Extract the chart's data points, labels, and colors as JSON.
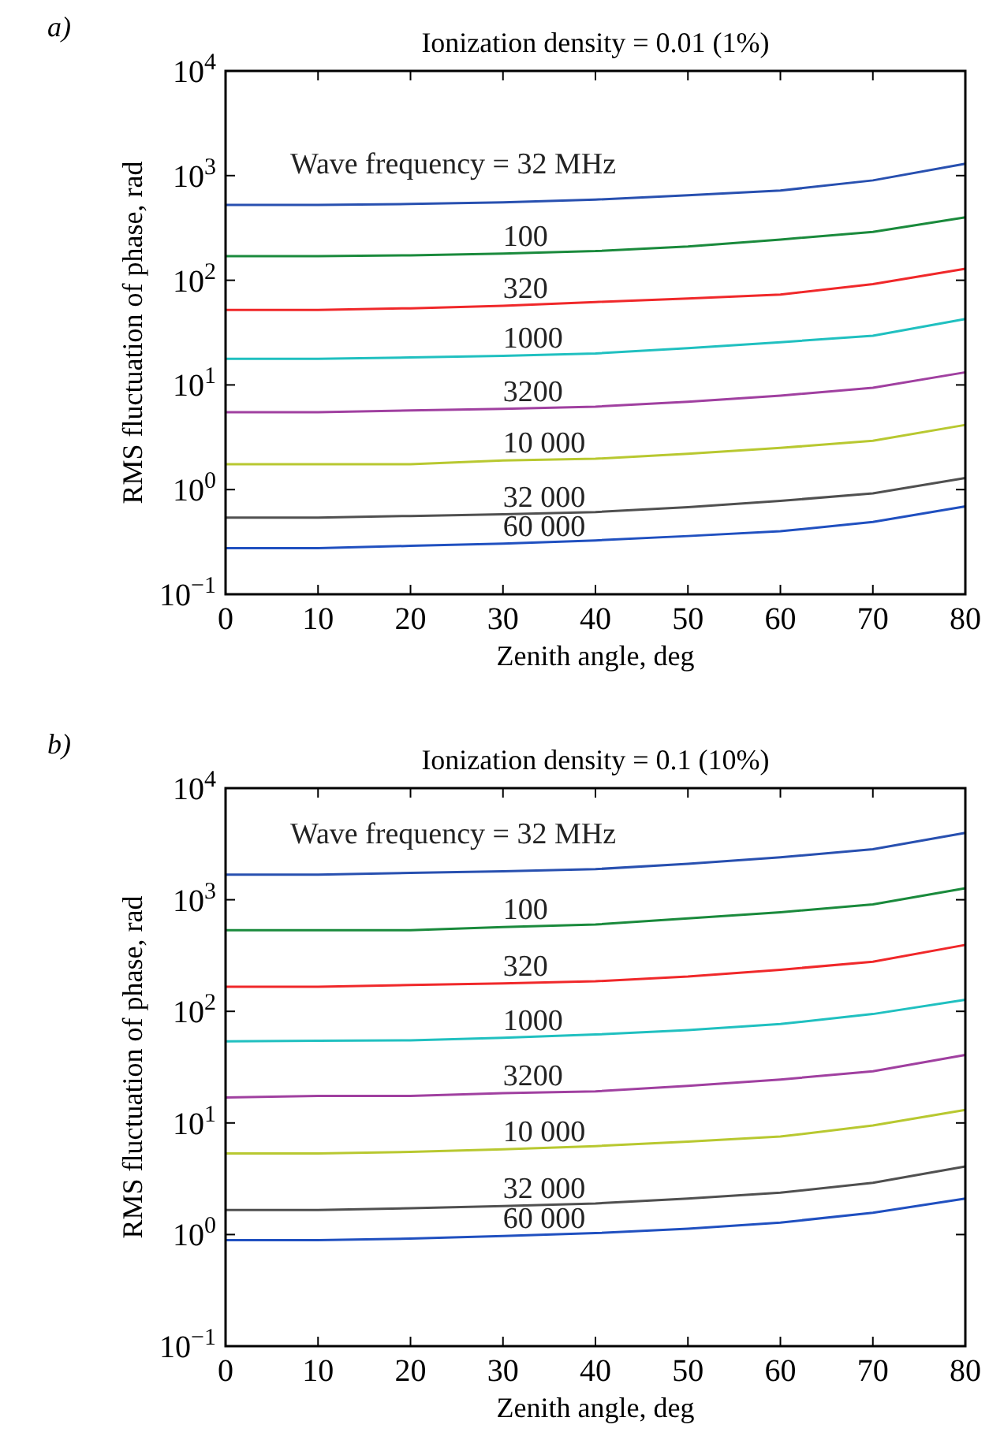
{
  "chart_data": [
    {
      "type": "line",
      "title": "Ionization density = 0.01 (1%)",
      "xlabel": "Zenith angle, deg",
      "ylabel": "RMS fluctuation of phase, rad",
      "annotations": [
        "a)"
      ],
      "log": true,
      "grid": false,
      "xlim": [
        0,
        80
      ],
      "xticks": [
        0,
        10,
        20,
        30,
        40,
        50,
        60,
        70,
        80
      ],
      "ylim": [
        0.1,
        10000
      ],
      "yticks": [
        {
          "value": 0.1,
          "label": "10$^{−1}$"
        },
        {
          "value": 1,
          "label": "10$^{0}$"
        },
        {
          "value": 10,
          "label": "10$^{1}$"
        },
        {
          "value": 100,
          "label": "10$^{2}$"
        },
        {
          "value": 1000,
          "label": "10$^{3}$"
        },
        {
          "value": 10000,
          "label": "10$^{4}$"
        }
      ],
      "x": [
        0,
        10,
        20,
        30,
        40,
        50,
        60,
        70,
        80
      ],
      "series": [
        {
          "name": "Wave frequency = 32 MHz",
          "color": "#2850b0",
          "values": [
            525,
            525,
            535,
            555,
            590,
            650,
            720,
            900,
            1300
          ]
        },
        {
          "name": "100",
          "color": "#1a8a3c",
          "values": [
            170,
            170,
            173,
            180,
            190,
            210,
            245,
            290,
            400
          ]
        },
        {
          "name": "320",
          "color": "#f0282a",
          "values": [
            52,
            52,
            54,
            57,
            62,
            67,
            73,
            92,
            129
          ]
        },
        {
          "name": "1000",
          "color": "#20c0c0",
          "values": [
            17.8,
            17.8,
            18.3,
            19,
            20,
            22.5,
            25.6,
            29.5,
            42.6
          ]
        },
        {
          "name": "3200",
          "color": "#a040a0",
          "values": [
            5.5,
            5.5,
            5.7,
            5.9,
            6.2,
            6.9,
            7.9,
            9.4,
            13.2
          ]
        },
        {
          "name": "10 000",
          "color": "#b8c830",
          "values": [
            1.75,
            1.75,
            1.75,
            1.9,
            1.97,
            2.2,
            2.5,
            2.93,
            4.15
          ]
        },
        {
          "name": "32 000",
          "color": "#505050",
          "values": [
            0.54,
            0.54,
            0.56,
            0.58,
            0.61,
            0.68,
            0.78,
            0.92,
            1.29
          ]
        },
        {
          "name": "60 000",
          "color": "#2050c0",
          "values": [
            0.276,
            0.276,
            0.29,
            0.305,
            0.327,
            0.36,
            0.4,
            0.49,
            0.69
          ]
        }
      ]
    },
    {
      "type": "line",
      "title": "Ionization density = 0.1 (10%)",
      "xlabel": "Zenith angle, deg",
      "ylabel": "RMS fluctuation of phase, rad",
      "annotations": [
        "b)"
      ],
      "log": true,
      "grid": false,
      "xlim": [
        0,
        80
      ],
      "xticks": [
        0,
        10,
        20,
        30,
        40,
        50,
        60,
        70,
        80
      ],
      "ylim": [
        0.1,
        10000
      ],
      "yticks": [
        {
          "value": 0.1,
          "label": "10$^{−1}$"
        },
        {
          "value": 1,
          "label": "10$^{0}$"
        },
        {
          "value": 10,
          "label": "10$^{1}$"
        },
        {
          "value": 100,
          "label": "10$^{2}$"
        },
        {
          "value": 1000,
          "label": "10$^{3}$"
        },
        {
          "value": 10000,
          "label": "10$^{4}$"
        }
      ],
      "x": [
        0,
        10,
        20,
        30,
        40,
        50,
        60,
        70,
        80
      ],
      "series": [
        {
          "name": "Wave frequency = 32 MHz",
          "color": "#2850b0",
          "values": [
            1680,
            1680,
            1740,
            1800,
            1880,
            2100,
            2400,
            2840,
            3980
          ]
        },
        {
          "name": "100",
          "color": "#1a8a3c",
          "values": [
            533,
            533,
            533,
            570,
            600,
            680,
            772,
            908,
            1270
          ]
        },
        {
          "name": "320",
          "color": "#f0282a",
          "values": [
            166,
            166,
            172,
            178,
            186,
            205,
            236,
            278,
            394
          ]
        },
        {
          "name": "1000",
          "color": "#20c0c0",
          "values": [
            53.8,
            54.5,
            55,
            58,
            62,
            68,
            77,
            94.6,
            127
          ]
        },
        {
          "name": "3200",
          "color": "#a040a0",
          "values": [
            16.9,
            17.5,
            17.5,
            18.5,
            19.2,
            21.5,
            24.5,
            29,
            40.7
          ]
        },
        {
          "name": "10 000",
          "color": "#b8c830",
          "values": [
            5.33,
            5.33,
            5.5,
            5.8,
            6.2,
            6.8,
            7.55,
            9.5,
            13.1
          ]
        },
        {
          "name": "32 000",
          "color": "#505050",
          "values": [
            1.66,
            1.66,
            1.72,
            1.8,
            1.9,
            2.1,
            2.37,
            2.91,
            4.07
          ]
        },
        {
          "name": "60 000",
          "color": "#2050c0",
          "values": [
            0.89,
            0.89,
            0.92,
            0.97,
            1.03,
            1.13,
            1.28,
            1.57,
            2.1
          ]
        }
      ]
    }
  ]
}
